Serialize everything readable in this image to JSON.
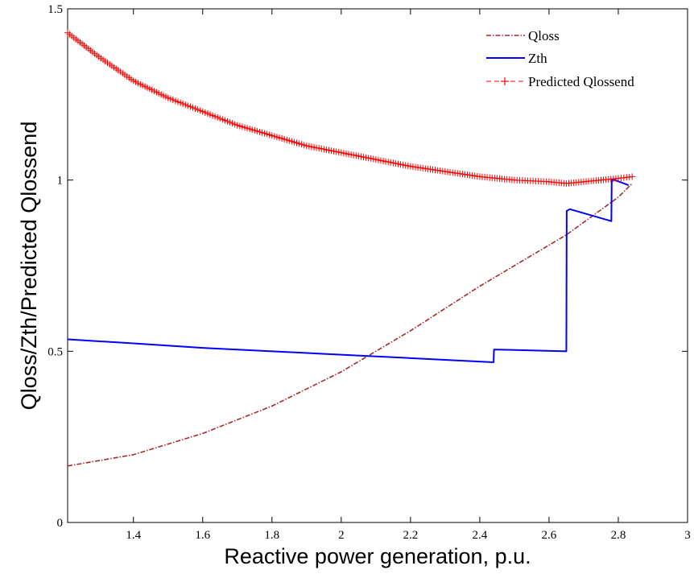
{
  "chart_data": {
    "type": "line",
    "title": "",
    "xlabel": "Reactive power generation, p.u.",
    "ylabel": "Qloss/Zth/Predicted Qlossend",
    "xlim": [
      1.21,
      3.0
    ],
    "ylim": [
      0,
      1.5
    ],
    "x_ticks": [
      "1.4",
      "1.6",
      "1.8",
      "2",
      "2.2",
      "2.4",
      "2.6",
      "2.8",
      "3"
    ],
    "y_ticks": [
      "0",
      "0.5",
      "1",
      "1.5"
    ],
    "grid": false,
    "legend_position": "top-right",
    "series": [
      {
        "name": "Qloss",
        "style": "dash-dot",
        "color": "#A52A2A",
        "x": [
          1.21,
          1.4,
          1.6,
          1.8,
          2.0,
          2.2,
          2.4,
          2.6,
          2.65,
          2.8,
          2.84
        ],
        "y": [
          0.165,
          0.198,
          0.26,
          0.34,
          0.44,
          0.56,
          0.69,
          0.81,
          0.84,
          0.95,
          0.99
        ]
      },
      {
        "name": "Zth",
        "style": "solid",
        "color": "#0000FF",
        "x": [
          1.21,
          1.4,
          1.6,
          1.8,
          2.0,
          2.2,
          2.44,
          2.441,
          2.45,
          2.65,
          2.651,
          2.66,
          2.78,
          2.781,
          2.79,
          2.83
        ],
        "y": [
          0.535,
          0.523,
          0.51,
          0.5,
          0.49,
          0.48,
          0.468,
          0.505,
          0.505,
          0.5,
          0.91,
          0.915,
          0.88,
          1.0,
          1.0,
          0.985
        ]
      },
      {
        "name": "Predicted Qlossend",
        "style": "plus-markers",
        "color": "#FF0000",
        "x": [
          1.21,
          1.3,
          1.4,
          1.5,
          1.6,
          1.7,
          1.8,
          1.9,
          2.0,
          2.1,
          2.2,
          2.3,
          2.4,
          2.5,
          2.6,
          2.65,
          2.7,
          2.8,
          2.84
        ],
        "y": [
          1.43,
          1.36,
          1.29,
          1.24,
          1.2,
          1.16,
          1.13,
          1.1,
          1.08,
          1.06,
          1.04,
          1.025,
          1.01,
          1.0,
          0.995,
          0.99,
          0.995,
          1.005,
          1.01
        ]
      }
    ]
  }
}
